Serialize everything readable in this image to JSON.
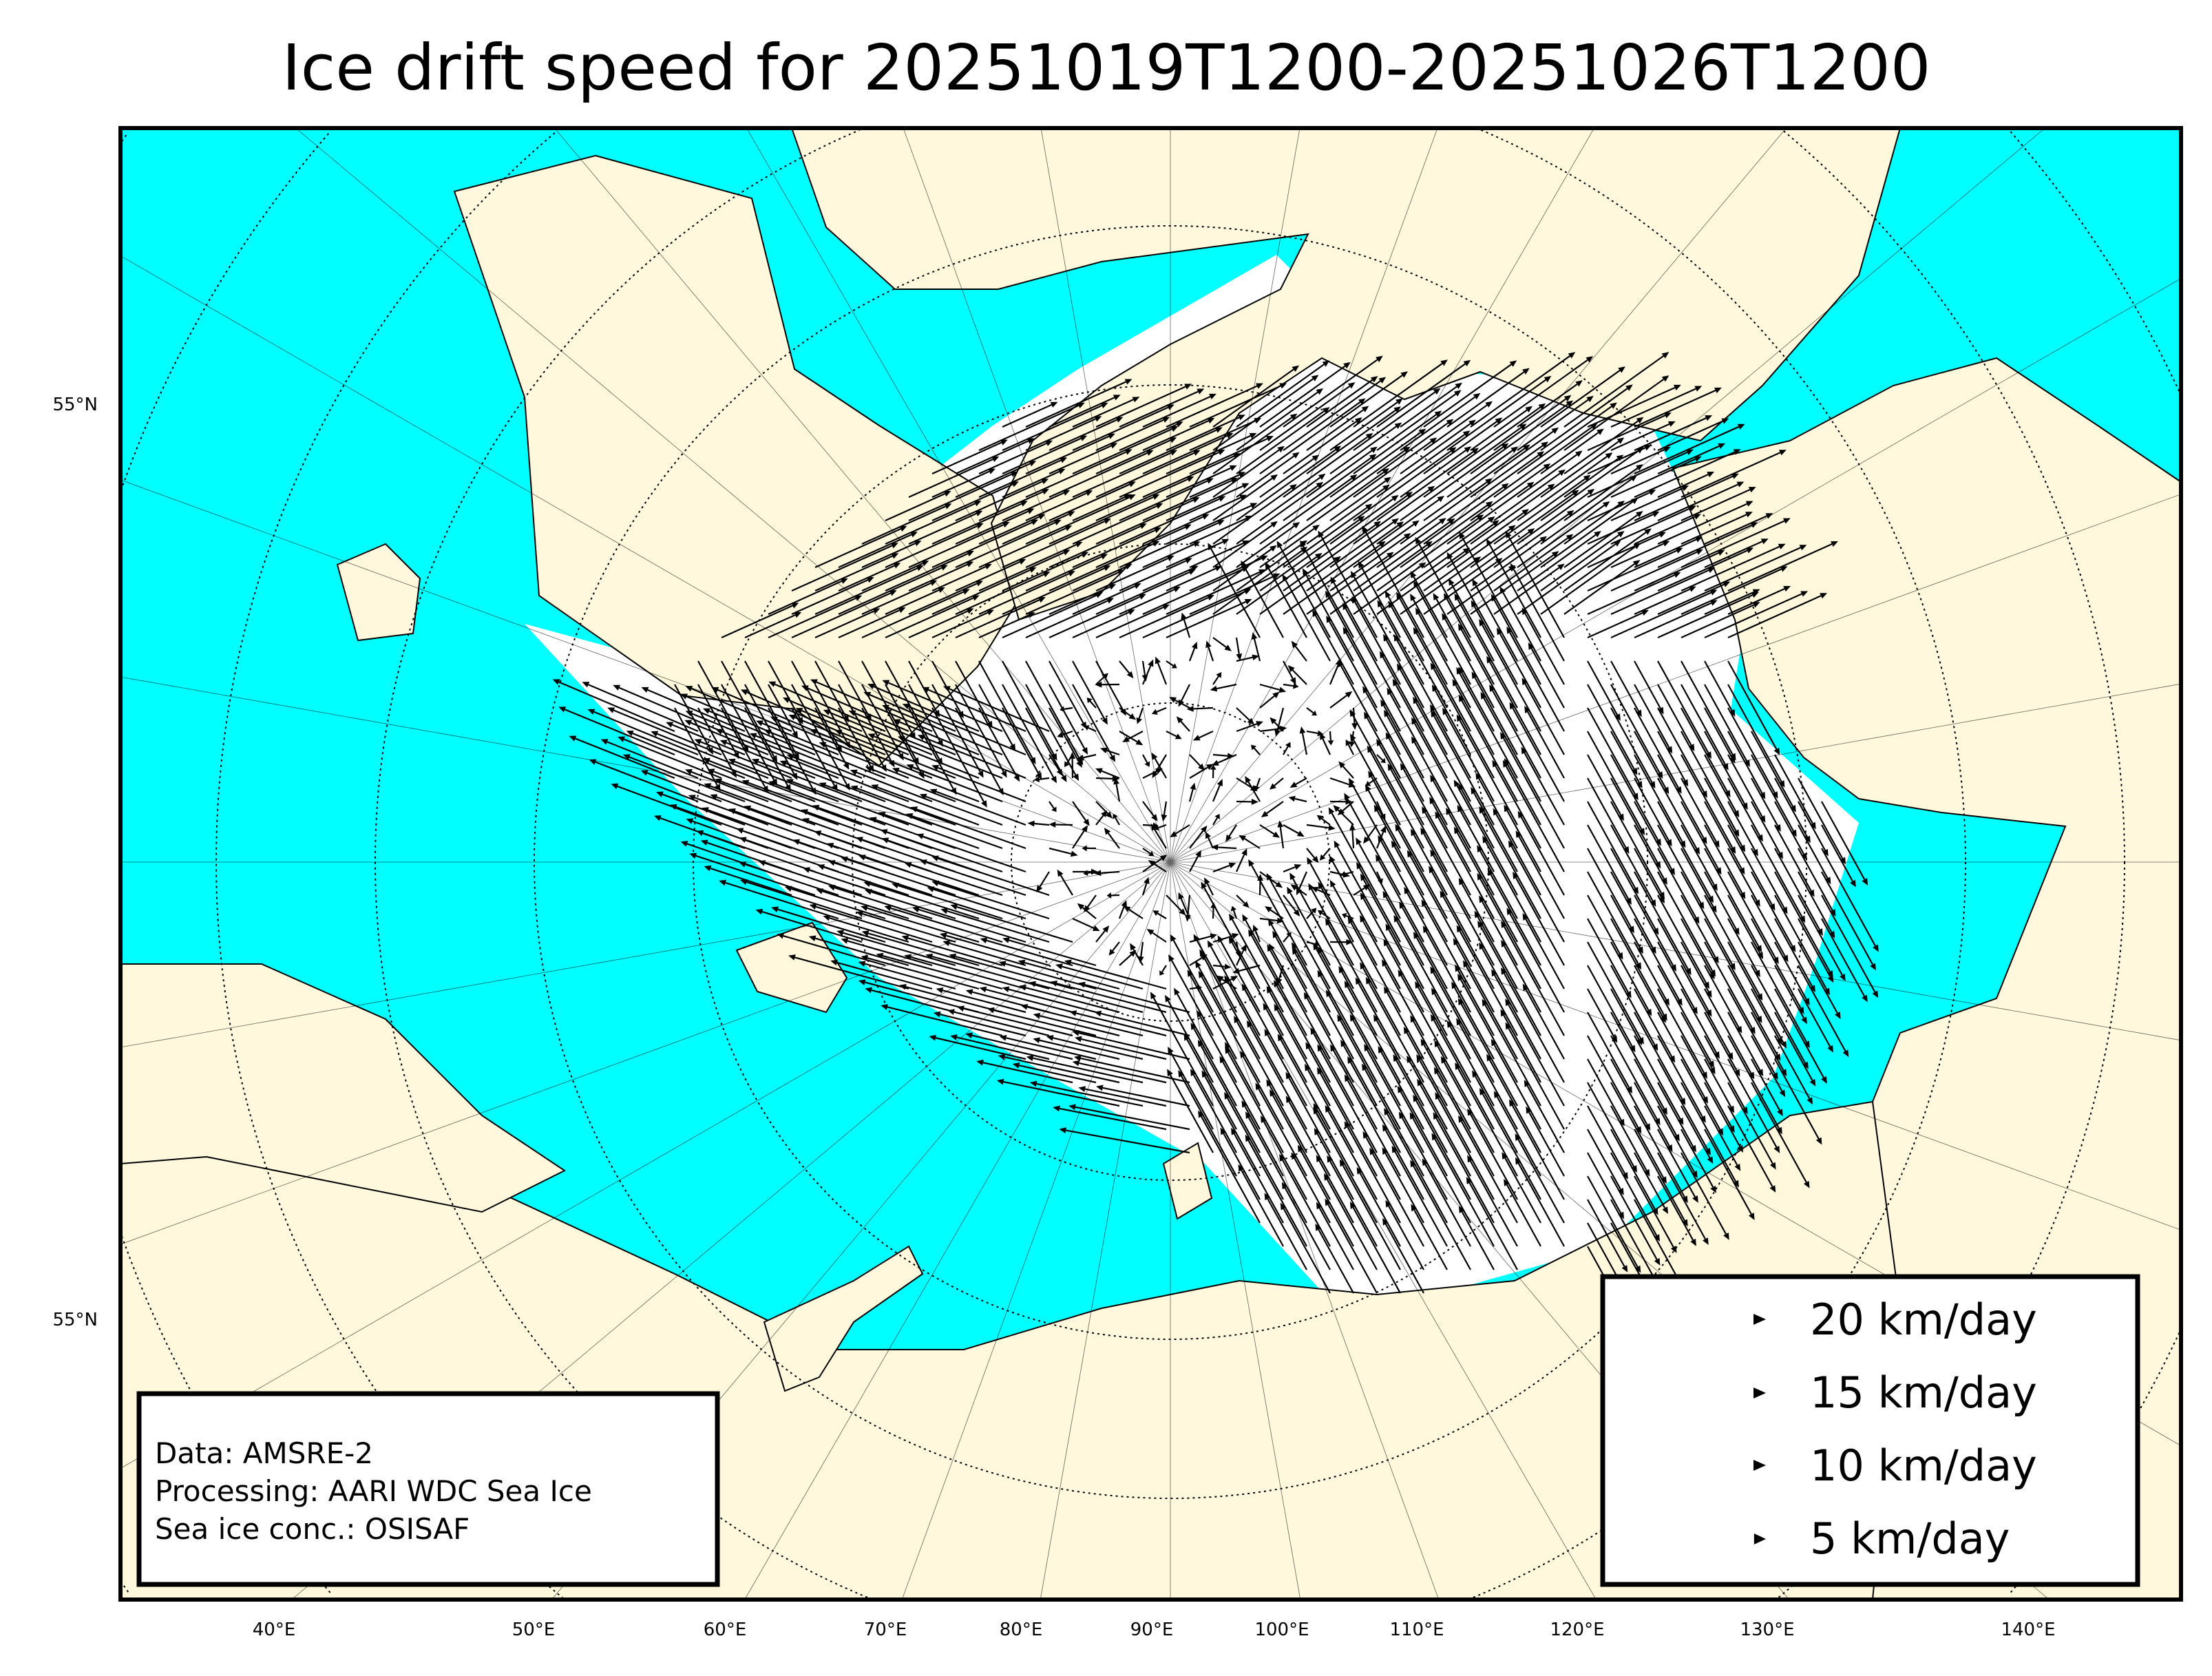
{
  "title": "Ice drift speed for 20251019T1200-20251026T1200",
  "colors": {
    "ocean": "#00ffff",
    "land": "#fff8dc",
    "ice": "#ffffff",
    "arrows": "#000000"
  },
  "map": {
    "projection": "polar stereographic (north)",
    "lat_labels": [
      "55°N",
      "55°N"
    ],
    "lon_labels": [
      "40°E",
      "50°E",
      "60°E",
      "70°E",
      "80°E",
      "90°E",
      "100°E",
      "110°E",
      "120°E",
      "130°E",
      "140°E"
    ]
  },
  "legend": {
    "items": [
      {
        "label": "20 km/day",
        "speed": 20
      },
      {
        "label": "15 km/day",
        "speed": 15
      },
      {
        "label": "10 km/day",
        "speed": 10
      },
      {
        "label": "5 km/day",
        "speed": 5
      }
    ]
  },
  "info": {
    "lines": [
      "Data: AMSRE-2",
      "Processing: AARI WDC Sea Ice",
      "Sea ice conc.: OSISAF"
    ]
  }
}
